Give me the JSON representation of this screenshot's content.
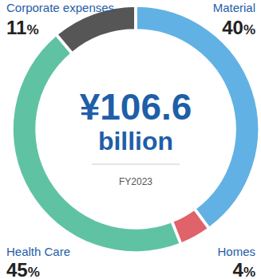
{
  "chart_data": {
    "type": "donut",
    "categories": [
      "Material",
      "Homes",
      "Health Care",
      "Corporate expenses"
    ],
    "values": [
      40,
      4,
      45,
      11
    ],
    "value_labels": [
      "40%",
      "4%",
      "45%",
      "11%"
    ],
    "colors": [
      "#62b1e4",
      "#e0626a",
      "#5fc3a3",
      "#565656"
    ],
    "data_labels": true,
    "annotations": [
      "¥106.6",
      "billion",
      "FY2023"
    ]
  }
}
